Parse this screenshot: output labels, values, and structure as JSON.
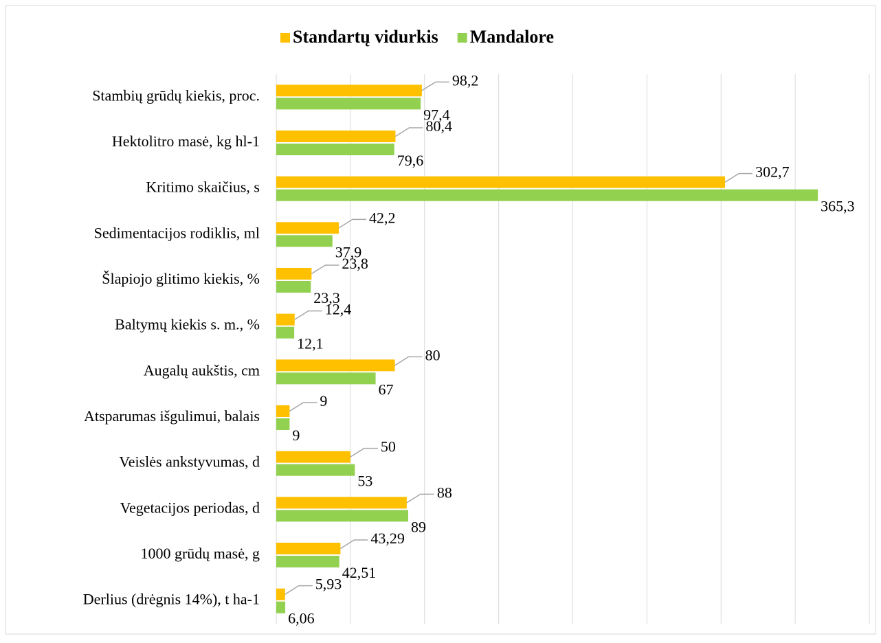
{
  "chart_data": {
    "type": "bar",
    "orientation": "horizontal",
    "categories": [
      "Stambių grūdų kiekis, proc.",
      "Hektolitro masė, kg hl-1",
      "Kritimo skaičius, s",
      "Sedimentacijos rodiklis, ml",
      "Šlapiojo glitimo kiekis, %",
      "Baltymų kiekis s. m., %",
      "Augalų aukštis, cm",
      "Atsparumas išgulimui, balais",
      "Veislės ankstyvumas, d",
      "Vegetacijos periodas, d",
      "1000 grūdų masė, g",
      "Derlius (drėgnis 14%), t ha-1"
    ],
    "series": [
      {
        "name": "Standartų vidurkis",
        "color": "#ffc000",
        "values": [
          98.2,
          80.4,
          302.7,
          42.2,
          23.8,
          12.4,
          80,
          9,
          50,
          88,
          43.29,
          5.93
        ],
        "value_labels": [
          "98,2",
          "80,4",
          "302,7",
          "42,2",
          "23,8",
          "12,4",
          "80",
          "9",
          "50",
          "88",
          "43,29",
          "5,93"
        ]
      },
      {
        "name": "Mandalore",
        "color": "#92d050",
        "values": [
          97.4,
          79.6,
          365.3,
          37.9,
          23.3,
          12.1,
          67,
          9,
          53,
          89,
          42.51,
          6.06
        ],
        "value_labels": [
          "97,4",
          "79,6",
          "365,3",
          "37,9",
          "23,3",
          "12,1",
          "67",
          "9",
          "53",
          "89",
          "42,51",
          "6,06"
        ]
      }
    ],
    "xlim": [
      0,
      400
    ],
    "xticks": [
      0,
      50,
      100,
      150,
      200,
      250,
      300,
      350,
      400
    ],
    "grid": true,
    "legend": "top"
  }
}
